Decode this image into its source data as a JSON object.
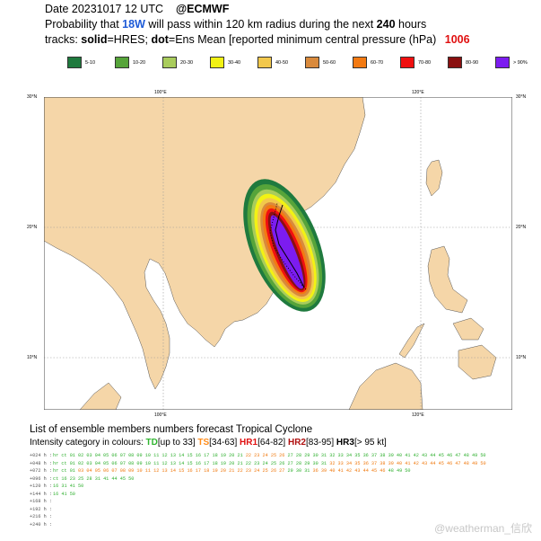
{
  "header": {
    "date_line": "Date 20231017 12 UTC",
    "source": "@ECMWF",
    "prob_prefix": "Probability that",
    "storm": "18W",
    "prob_mid": "will pass within 120 km radius during the next",
    "hours": "240",
    "prob_suffix": "hours",
    "tracks_label": "tracks:",
    "solid": "solid",
    "solid_def": "=HRES;",
    "dot": "dot",
    "dot_def": "=Ens Mean [reported minimum central pressure (hPa)",
    "pressure": "1006"
  },
  "legend": [
    {
      "label": "5-10",
      "color": "#1f7a3e"
    },
    {
      "label": "10-20",
      "color": "#56a43a"
    },
    {
      "label": "20-30",
      "color": "#a9cc5c"
    },
    {
      "label": "30-40",
      "color": "#f2f214"
    },
    {
      "label": "40-50",
      "color": "#f2c84c"
    },
    {
      "label": "50-60",
      "color": "#d98a3c"
    },
    {
      "label": "60-70",
      "color": "#f37a12"
    },
    {
      "label": "70-80",
      "color": "#f01010"
    },
    {
      "label": "80-90",
      "color": "#8a1010"
    },
    {
      "label": "> 90%",
      "color": "#7c1cf0"
    }
  ],
  "map": {
    "colors": {
      "land": "#f5d6a8",
      "sea": "#ffffff",
      "grid": "#999999"
    },
    "lon_labels": [
      "100°E",
      "120°E"
    ],
    "lat_labels": [
      "30°N",
      "20°N",
      "10°N"
    ]
  },
  "ensemble": {
    "title": "List of ensemble members numbers forecast Tropical Cyclone",
    "intensity_prefix": "Intensity category in colours:",
    "td": "TD",
    "td_range": "[up to 33]",
    "ts": "TS",
    "ts_range": "[34-63]",
    "hr1": "HR1",
    "hr1_range": "[64-82]",
    "hr2": "HR2",
    "hr2_range": "[83-95]",
    "hr3": "HR3",
    "hr3_range": "[> 95 kt]",
    "rows": [
      {
        "label": "+024 h :",
        "items": [
          {
            "t": "hr",
            "c": "td"
          },
          {
            "t": "ct",
            "c": "td"
          },
          {
            "t": "01 02 03 04 05 06 07 08 09 10 11 12 13 14 15 16 17 18 19 20 21",
            "c": "td"
          },
          {
            "t": "22 23 24 25 26",
            "c": "ts"
          },
          {
            "t": "27 28 29 30 31 32 33 34 35 36 37 38 39 40 41 42 43 44 45 46 47 48 49 50",
            "c": "td"
          }
        ]
      },
      {
        "label": "+048 h :",
        "items": [
          {
            "t": "hr",
            "c": "td"
          },
          {
            "t": "ct",
            "c": "td"
          },
          {
            "t": "01 02 03 04 05 06 07 08 09 10 11 12 13 14 15 16 17 18 19 20 21 22",
            "c": "td"
          },
          {
            "t": "23 24 25 26 27 28 29 30 31",
            "c": "td"
          },
          {
            "t": "32 33 34 35 36 37 38 39 40 41 42 43 44 45 46 47 48 49 50",
            "c": "ts"
          }
        ]
      },
      {
        "label": "+072 h :",
        "items": [
          {
            "t": "hr",
            "c": "td"
          },
          {
            "t": "ct",
            "c": "td"
          },
          {
            "t": "01",
            "c": "td"
          },
          {
            "t": "03 04 05 06 07 08 09 10 11 12 13 14 15 16 17 18 19 20 21 22 23 24 25 26 27",
            "c": "ts"
          },
          {
            "t": "29 30 31",
            "c": "td"
          },
          {
            "t": "36",
            "c": "ts"
          },
          {
            "t": "39 40 41 42 43 44 45 46",
            "c": "ts"
          },
          {
            "t": "48 49 50",
            "c": "td"
          }
        ]
      },
      {
        "label": "+096 h :",
        "items": [
          {
            "t": "ct",
            "c": "td"
          },
          {
            "t": "16",
            "c": "td"
          },
          {
            "t": "23",
            "c": "td"
          },
          {
            "t": "25",
            "c": "td"
          },
          {
            "t": "28",
            "c": "td"
          },
          {
            "t": "31",
            "c": "td"
          },
          {
            "t": "41",
            "c": "td"
          },
          {
            "t": "44",
            "c": "td"
          },
          {
            "t": "45",
            "c": "td"
          },
          {
            "t": "50",
            "c": "td"
          }
        ]
      },
      {
        "label": "+120 h :",
        "items": [
          {
            "t": "16",
            "c": "td"
          },
          {
            "t": "31",
            "c": "td"
          },
          {
            "t": "41",
            "c": "td"
          },
          {
            "t": "50",
            "c": "td"
          }
        ]
      },
      {
        "label": "+144 h :",
        "items": [
          {
            "t": "16",
            "c": "td"
          },
          {
            "t": "41",
            "c": "td"
          },
          {
            "t": "50",
            "c": "td"
          }
        ]
      },
      {
        "label": "+168 h :",
        "items": []
      },
      {
        "label": "+192 h :",
        "items": []
      },
      {
        "label": "+216 h :",
        "items": []
      },
      {
        "label": "+240 h :",
        "items": []
      }
    ]
  },
  "watermark": "@weatherman_信欣"
}
